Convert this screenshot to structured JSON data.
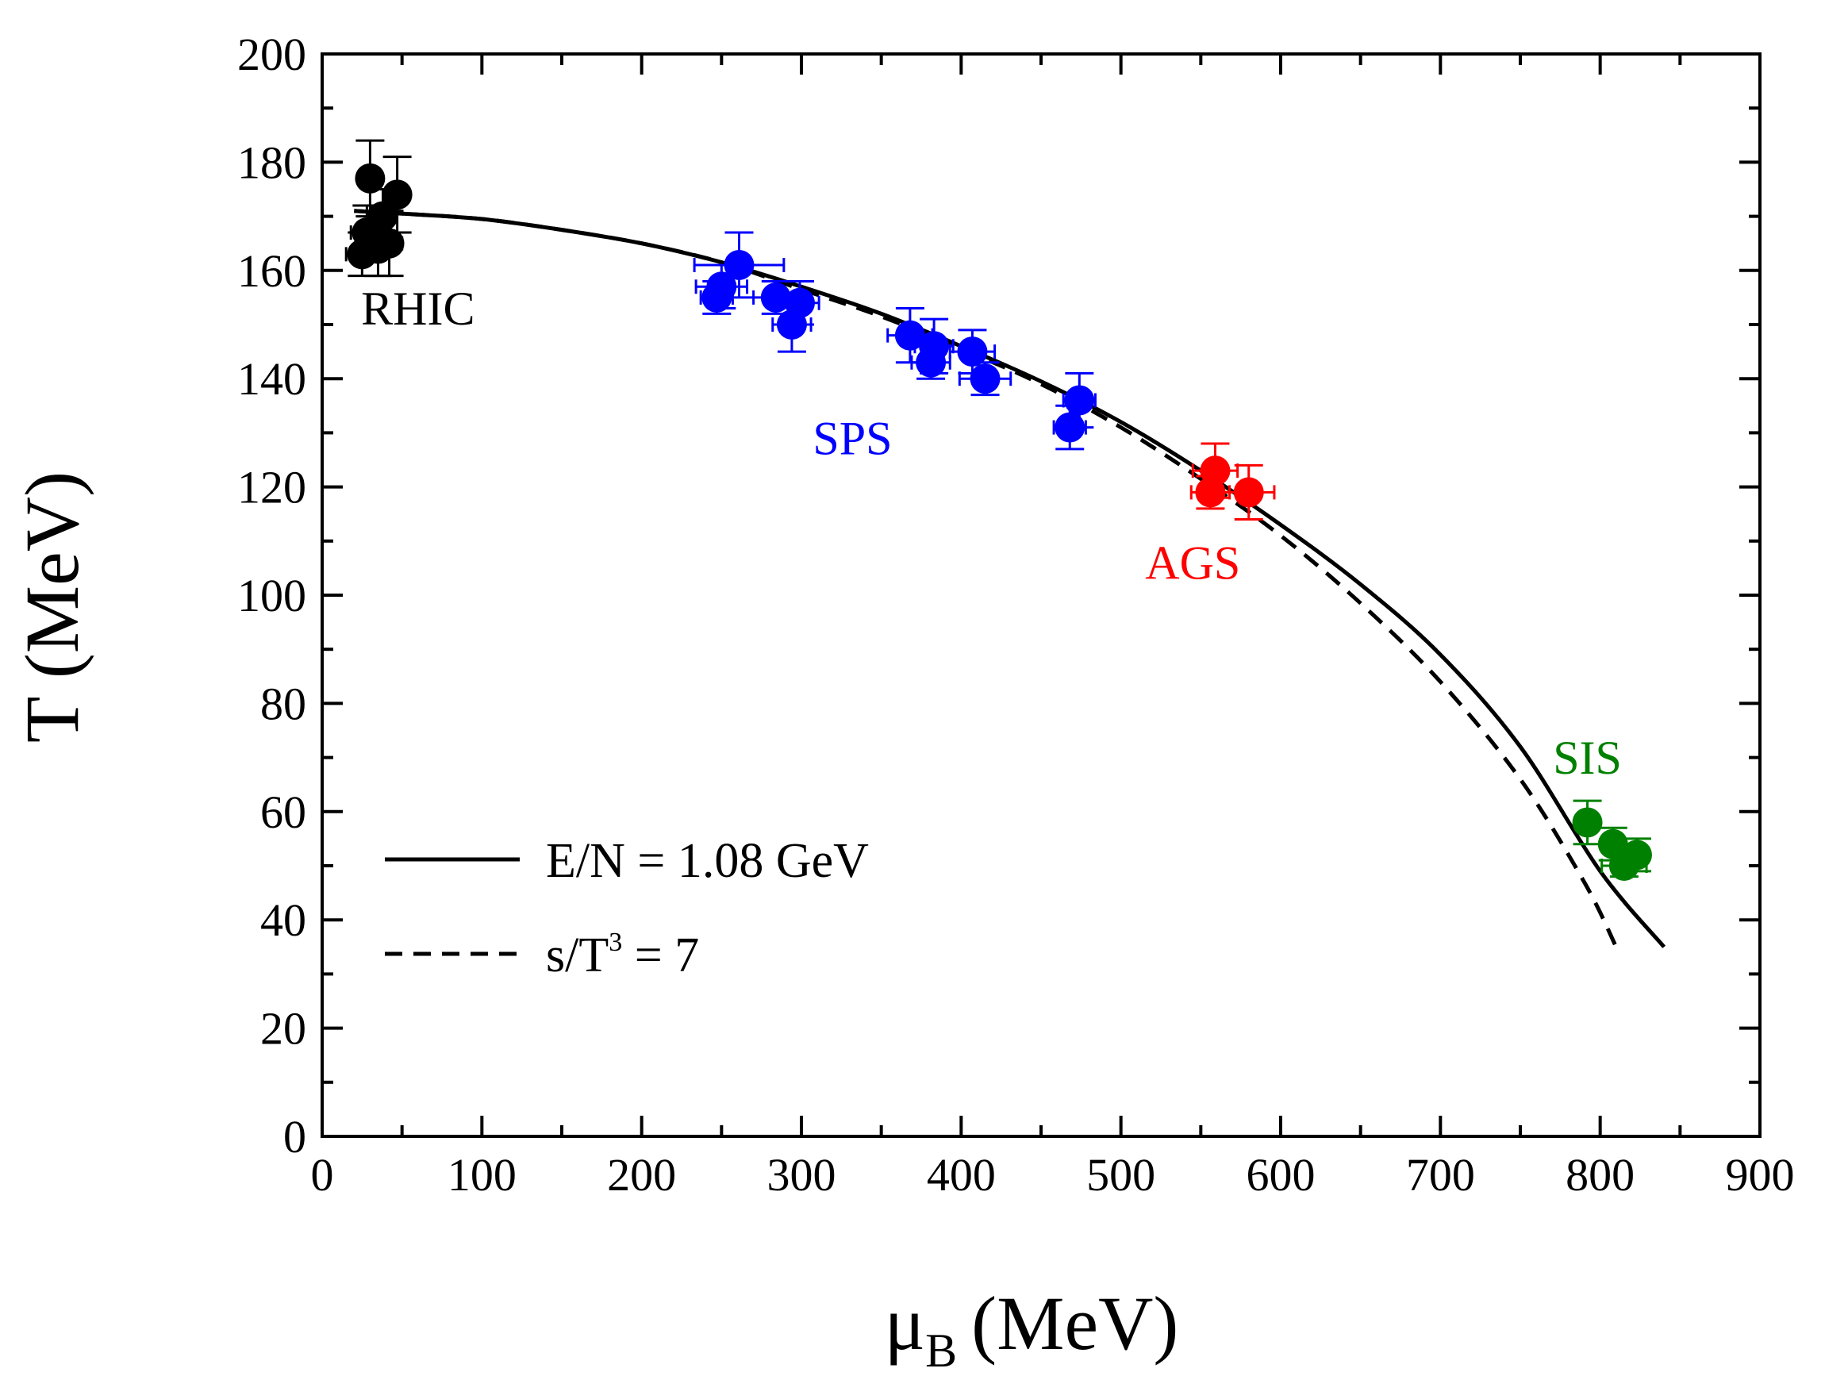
{
  "chart_data": {
    "type": "scatter",
    "xlabel": "μ",
    "xlabel_sub": "B",
    "xlabel_unit": "(MeV)",
    "ylabel": "T (MeV)",
    "xlim": [
      0,
      900
    ],
    "ylim": [
      0,
      200
    ],
    "x_ticks": [
      0,
      100,
      200,
      300,
      400,
      500,
      600,
      700,
      800,
      900
    ],
    "y_ticks": [
      0,
      20,
      40,
      60,
      80,
      100,
      120,
      140,
      160,
      180,
      200
    ],
    "x_tick_labels": [
      "0",
      "100",
      "200",
      "300",
      "400",
      "500",
      "600",
      "700",
      "800",
      "900"
    ],
    "y_tick_labels": [
      "0",
      "20",
      "40",
      "60",
      "80",
      "100",
      "120",
      "140",
      "160",
      "180",
      "200"
    ],
    "lines": [
      {
        "name": "E/N = 1.08 GeV",
        "style": "solid",
        "color": "#000000",
        "x": [
          20,
          50,
          100,
          150,
          200,
          250,
          300,
          350,
          400,
          450,
          500,
          550,
          600,
          650,
          700,
          750,
          800,
          840
        ],
        "y": [
          171,
          170.5,
          169.5,
          167.5,
          165,
          161.5,
          157,
          152,
          146,
          139.5,
          132,
          123,
          113,
          102,
          89,
          72,
          49,
          35
        ]
      },
      {
        "name": "s/T³ = 7",
        "legend_base": "s/T",
        "legend_sup": "3",
        "legend_tail": " = 7",
        "style": "dashed",
        "color": "#000000",
        "x": [
          20,
          50,
          100,
          150,
          200,
          250,
          300,
          350,
          400,
          450,
          500,
          550,
          600,
          650,
          700,
          750,
          790,
          810
        ],
        "y": [
          171,
          170.5,
          169.5,
          167.5,
          165,
          161.5,
          156.5,
          151.5,
          145.5,
          139,
          131,
          121.5,
          111,
          98.5,
          84,
          66,
          47,
          35
        ]
      }
    ],
    "series": [
      {
        "name": "RHIC",
        "color": "#000000",
        "label_x": 60,
        "label_y": 150,
        "points": [
          {
            "x": 30,
            "y": 177,
            "xerr": 6,
            "yerr": 7
          },
          {
            "x": 47,
            "y": 174,
            "xerr": 5,
            "yerr": 7
          },
          {
            "x": 38,
            "y": 170,
            "xerr": 6,
            "yerr": 5
          },
          {
            "x": 28,
            "y": 167,
            "xerr": 10,
            "yerr": 5
          },
          {
            "x": 42,
            "y": 165,
            "xerr": 8,
            "yerr": 6
          },
          {
            "x": 25,
            "y": 163,
            "xerr": 10,
            "yerr": 4
          },
          {
            "x": 35,
            "y": 164,
            "xerr": 8,
            "yerr": 5
          }
        ]
      },
      {
        "name": "SPS",
        "color": "#0000ff",
        "label_x": 332,
        "label_y": 126,
        "points": [
          {
            "x": 261,
            "y": 161,
            "xerr": 28,
            "yerr": 6
          },
          {
            "x": 250,
            "y": 157,
            "xerr": 16,
            "yerr": 4
          },
          {
            "x": 247,
            "y": 155,
            "xerr": 10,
            "yerr": 3
          },
          {
            "x": 284,
            "y": 155,
            "xerr": 14,
            "yerr": 3
          },
          {
            "x": 299,
            "y": 154,
            "xerr": 12,
            "yerr": 4
          },
          {
            "x": 294,
            "y": 150,
            "xerr": 12,
            "yerr": 5
          },
          {
            "x": 368,
            "y": 148,
            "xerr": 14,
            "yerr": 5
          },
          {
            "x": 383,
            "y": 146,
            "xerr": 12,
            "yerr": 5
          },
          {
            "x": 381,
            "y": 143,
            "xerr": 12,
            "yerr": 3
          },
          {
            "x": 407,
            "y": 145,
            "xerr": 14,
            "yerr": 4
          },
          {
            "x": 415,
            "y": 140,
            "xerr": 16,
            "yerr": 3
          },
          {
            "x": 474,
            "y": 136,
            "xerr": 10,
            "yerr": 5
          },
          {
            "x": 468,
            "y": 131,
            "xerr": 10,
            "yerr": 4
          }
        ]
      },
      {
        "name": "AGS",
        "color": "#ff0000",
        "label_x": 545,
        "label_y": 103,
        "points": [
          {
            "x": 559,
            "y": 123,
            "xerr": 14,
            "yerr": 5
          },
          {
            "x": 556,
            "y": 119,
            "xerr": 12,
            "yerr": 3
          },
          {
            "x": 580,
            "y": 119,
            "xerr": 16,
            "yerr": 5
          }
        ]
      },
      {
        "name": "SIS",
        "color": "#008000",
        "label_x": 792,
        "label_y": 67,
        "points": [
          {
            "x": 792,
            "y": 58,
            "xerr": 6,
            "yerr": 4
          },
          {
            "x": 808,
            "y": 54,
            "xerr": 6,
            "yerr": 3
          },
          {
            "x": 823,
            "y": 52,
            "xerr": 6,
            "yerr": 3
          },
          {
            "x": 815,
            "y": 50,
            "xerr": 14,
            "yerr": 2
          }
        ]
      }
    ]
  }
}
